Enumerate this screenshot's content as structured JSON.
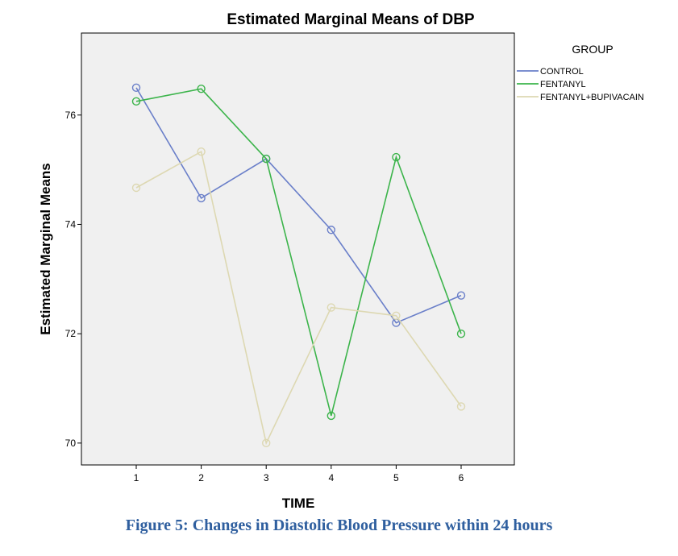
{
  "chart_data": {
    "type": "line",
    "title": "Estimated Marginal Means of DBP",
    "xlabel": "TIME",
    "ylabel": "Estimated Marginal Means",
    "categories": [
      "1",
      "2",
      "3",
      "4",
      "5",
      "6"
    ],
    "y_ticks": [
      70,
      72,
      74,
      76
    ],
    "ylim": [
      69.6,
      77.5
    ],
    "grid": false,
    "markers": "open-circle",
    "legend": {
      "title": "GROUP",
      "placement": "top-right outside"
    },
    "series": [
      {
        "name": "CONTROL",
        "color": "#6a7fc9",
        "values": [
          76.5,
          74.48,
          75.2,
          73.9,
          72.2,
          72.7
        ]
      },
      {
        "name": "FENTANYL",
        "color": "#3cb44b",
        "values": [
          76.25,
          76.48,
          75.2,
          70.5,
          75.23,
          72.0
        ]
      },
      {
        "name": "FENTANYL+BUPIVACAIN",
        "color": "#ddd8b2",
        "values": [
          74.67,
          75.33,
          70.0,
          72.48,
          72.33,
          70.67
        ]
      }
    ]
  },
  "caption": "Figure 5: Changes in Diastolic Blood Pressure within 24 hours"
}
